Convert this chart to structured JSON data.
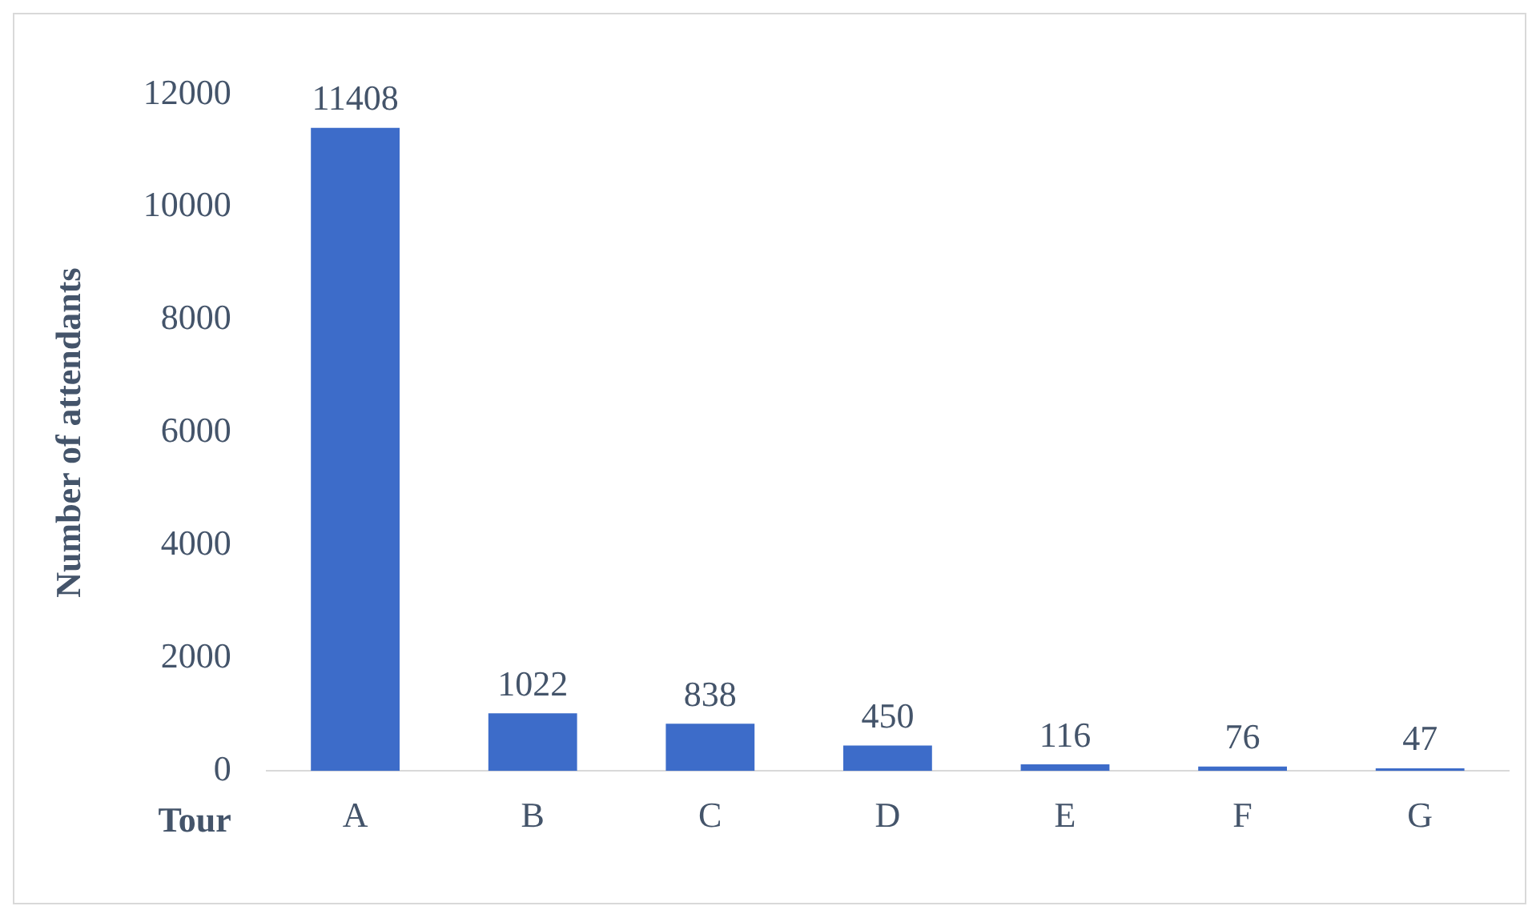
{
  "chart_data": {
    "type": "bar",
    "xlabel": "Tour",
    "ylabel": "Number of attendants",
    "categories": [
      "A",
      "B",
      "C",
      "D",
      "E",
      "F",
      "G"
    ],
    "values": [
      11408,
      1022,
      838,
      450,
      116,
      76,
      47
    ],
    "color": "#3d6cc9",
    "ylim": [
      0,
      12000
    ],
    "yticks": [
      0,
      2000,
      4000,
      6000,
      8000,
      10000,
      12000
    ],
    "grid": false,
    "legend": false,
    "data_labels": true
  }
}
